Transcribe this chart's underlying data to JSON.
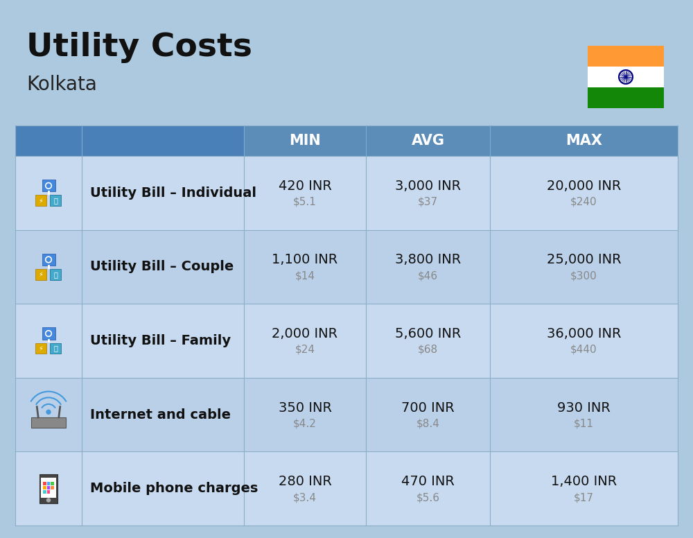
{
  "title": "Utility Costs",
  "subtitle": "Kolkata",
  "background_color": "#ADC9E0",
  "header_bg_color": "#5B8DB8",
  "header_text_color": "#FFFFFF",
  "col_divider_color": "#8FAACC",
  "headers": [
    "MIN",
    "AVG",
    "MAX"
  ],
  "rows": [
    {
      "label": "Utility Bill – Individual",
      "min_inr": "420 INR",
      "min_usd": "$5.1",
      "avg_inr": "3,000 INR",
      "avg_usd": "$37",
      "max_inr": "20,000 INR",
      "max_usd": "$240"
    },
    {
      "label": "Utility Bill – Couple",
      "min_inr": "1,100 INR",
      "min_usd": "$14",
      "avg_inr": "3,800 INR",
      "avg_usd": "$46",
      "max_inr": "25,000 INR",
      "max_usd": "$300"
    },
    {
      "label": "Utility Bill – Family",
      "min_inr": "2,000 INR",
      "min_usd": "$24",
      "avg_inr": "5,600 INR",
      "avg_usd": "$68",
      "max_inr": "36,000 INR",
      "max_usd": "$440"
    },
    {
      "label": "Internet and cable",
      "min_inr": "350 INR",
      "min_usd": "$4.2",
      "avg_inr": "700 INR",
      "avg_usd": "$8.4",
      "max_inr": "930 INR",
      "max_usd": "$11"
    },
    {
      "label": "Mobile phone charges",
      "min_inr": "280 INR",
      "min_usd": "$3.4",
      "avg_inr": "470 INR",
      "avg_usd": "$5.6",
      "max_inr": "1,400 INR",
      "max_usd": "$17"
    }
  ],
  "title_fontsize": 34,
  "subtitle_fontsize": 20,
  "header_fontsize": 15,
  "label_fontsize": 14,
  "value_fontsize": 14,
  "usd_fontsize": 11,
  "flag_colors": [
    "#FF9933",
    "#FFFFFF",
    "#138808"
  ],
  "row_even_color": "#C8DAF0",
  "row_odd_color": "#BAD0E9"
}
